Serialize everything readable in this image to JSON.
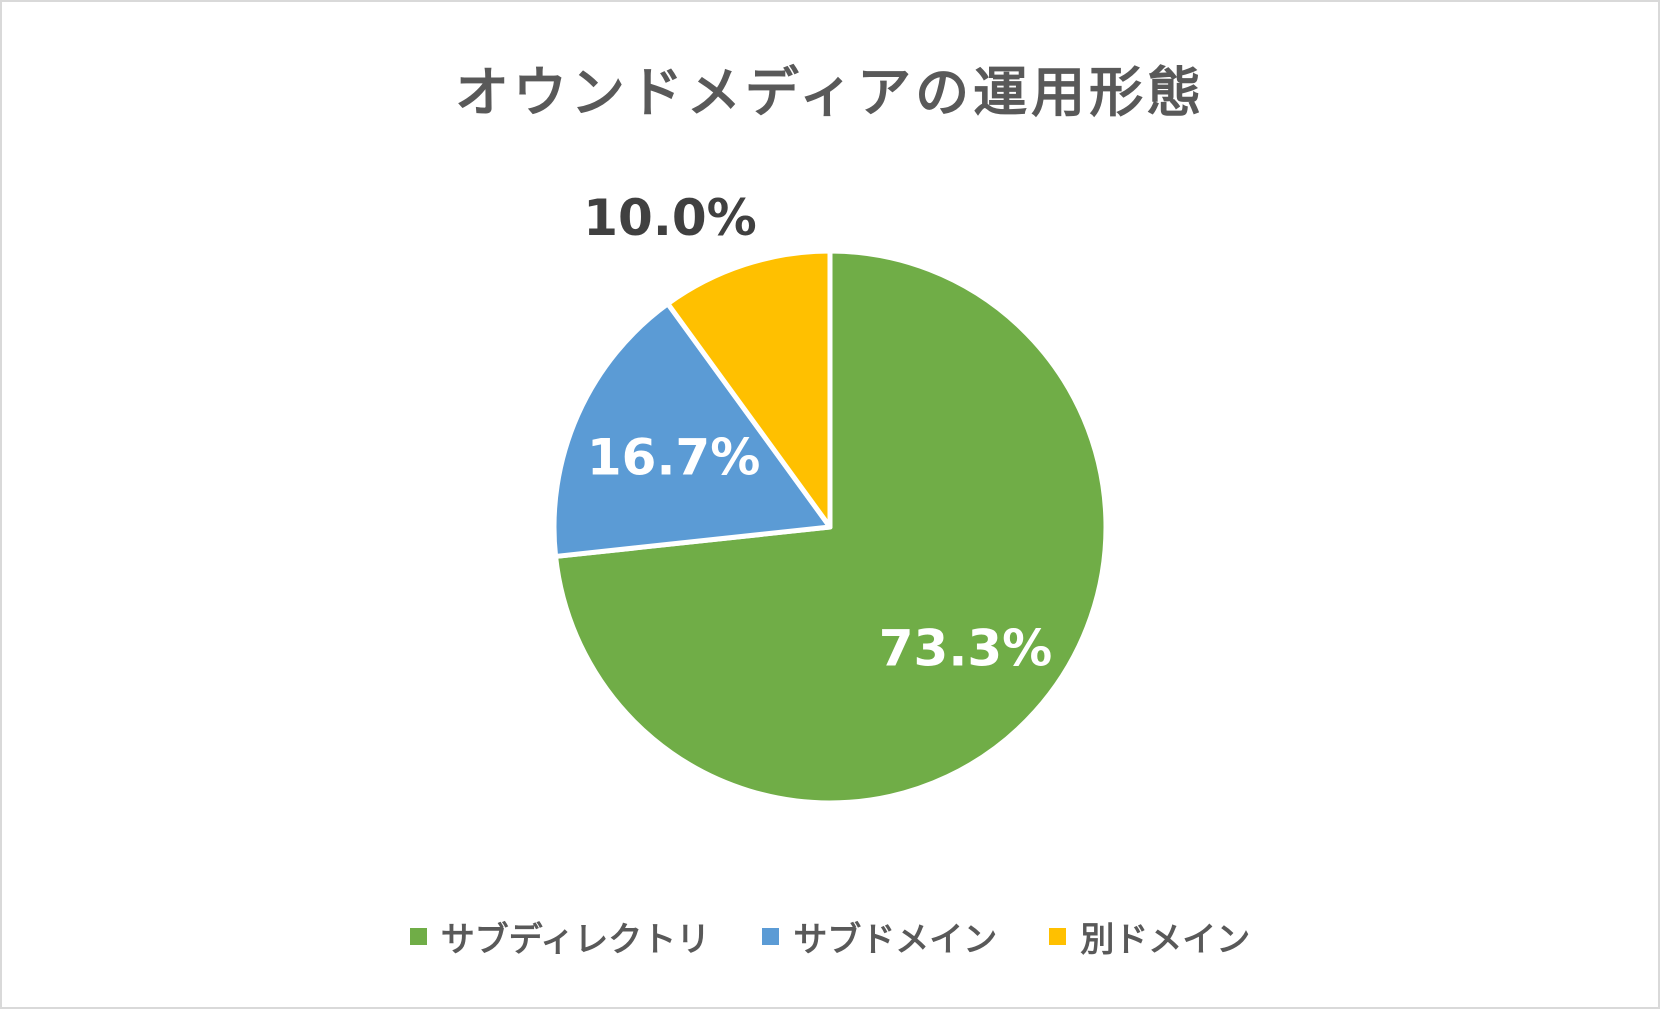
{
  "chart_data": {
    "type": "pie",
    "title": "オウンドメディアの運用形態",
    "slices": [
      {
        "name": "サブディレクトリ",
        "value": 73.3,
        "label": "73.3%",
        "color": "#70ad47",
        "label_color": "#ffffff"
      },
      {
        "name": "サブドメイン",
        "value": 16.7,
        "label": "16.7%",
        "color": "#5b9bd5",
        "label_color": "#ffffff"
      },
      {
        "name": "別ドメイン",
        "value": 10.0,
        "label": "10.0%",
        "color": "#ffc000",
        "label_color": "#404040"
      }
    ],
    "legend_position": "bottom"
  }
}
